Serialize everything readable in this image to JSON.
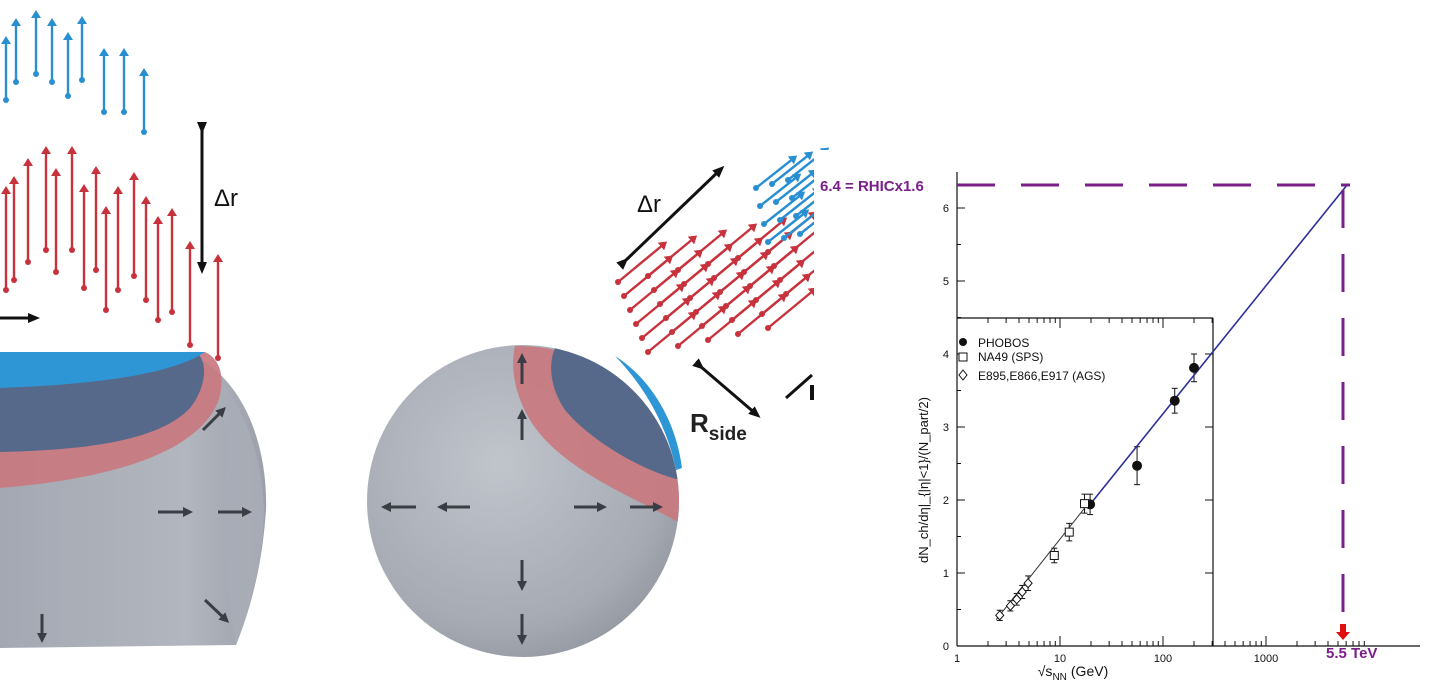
{
  "left_figure": {
    "delta_r_label": "Δr"
  },
  "middle_figure": {
    "delta_r_label": "Δr",
    "rside_main": "R",
    "rside_sub": "side"
  },
  "chart": {
    "annotation_top": "6.4 = RHICx1.6",
    "annotation_energy": "5.5 TeV",
    "ylabel": "dN_ch/dη|_{|η|<1}/(N_part/2)",
    "xlabel_main": "√s",
    "xlabel_sub": "NN",
    "xlabel_unit": "(GeV)",
    "legend": [
      "PHOBOS",
      "NA49 (SPS)",
      "E895,E866,E917 (AGS)"
    ],
    "colors": {
      "annotation": "#7a1f8a",
      "fit_line": "#2b2f9a",
      "arrow": "#e01010"
    }
  },
  "chart_data": {
    "type": "scatter",
    "title": "",
    "xlabel": "√sNN (GeV)",
    "ylabel": "dNch/dη||η|<1/(Npart/2)",
    "x_scale": "log",
    "xlim": [
      1,
      10000
    ],
    "ylim": [
      0,
      6.4
    ],
    "x_ticks": [
      "1",
      "10",
      "100",
      "1000"
    ],
    "y_ticks": [
      "0",
      "1",
      "2",
      "3",
      "4",
      "5",
      "6"
    ],
    "grid": false,
    "legend_position": "top-left",
    "series": [
      {
        "name": "PHOBOS",
        "marker": "filled-circle",
        "x": [
          19.6,
          56,
          130,
          200
        ],
        "y": [
          1.94,
          2.47,
          3.36,
          3.81
        ],
        "err": [
          0.14,
          0.26,
          0.17,
          0.19
        ]
      },
      {
        "name": "NA49 (SPS)",
        "marker": "open-square",
        "x": [
          8.8,
          12.3,
          17.3
        ],
        "y": [
          1.24,
          1.56,
          1.95
        ],
        "err": [
          0.1,
          0.12,
          0.13
        ]
      },
      {
        "name": "E895,E866,E917 (AGS)",
        "marker": "open-diamond",
        "x": [
          2.6,
          3.3,
          3.8,
          4.3,
          4.9
        ],
        "y": [
          0.42,
          0.55,
          0.64,
          0.74,
          0.86
        ],
        "err": [
          0.07,
          0.07,
          0.08,
          0.09,
          0.1
        ]
      }
    ],
    "fit_line": {
      "x": [
        19.6,
        6000
      ],
      "y": [
        1.94,
        6.3
      ]
    },
    "annotations": [
      {
        "text": "6.4 = RHICx1.6",
        "y": 6.4
      },
      {
        "text": "5.5 TeV",
        "x": 5500
      }
    ]
  }
}
